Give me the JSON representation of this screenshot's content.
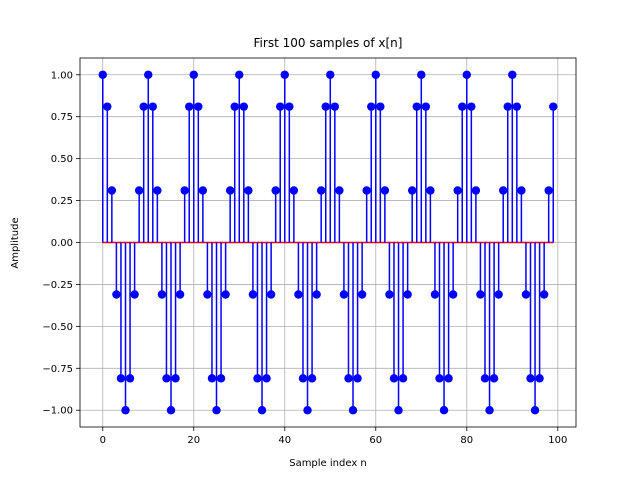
{
  "chart_data": {
    "type": "stem",
    "title": "First 100 samples of x[n]",
    "xlabel": "Sample index n",
    "ylabel": "Amplitude",
    "xlim": [
      -5,
      104
    ],
    "ylim": [
      -1.1,
      1.1
    ],
    "xticks": [
      0,
      20,
      40,
      60,
      80,
      100
    ],
    "yticks": [
      -1.0,
      -0.75,
      -0.5,
      -0.25,
      0.0,
      0.25,
      0.5,
      0.75,
      1.0
    ],
    "xtick_labels": [
      "0",
      "20",
      "40",
      "60",
      "80",
      "100"
    ],
    "ytick_labels": [
      "−1.00",
      "−0.75",
      "−0.50",
      "−0.25",
      "0.00",
      "0.25",
      "0.50",
      "0.75",
      "1.00"
    ],
    "grid": true,
    "series": [
      {
        "color": "#0000ff",
        "x": [
          0,
          1,
          2,
          3,
          4,
          5,
          6,
          7,
          8,
          9,
          10,
          11,
          12,
          13,
          14,
          15,
          16,
          17,
          18,
          19,
          20,
          21,
          22,
          23,
          24,
          25,
          26,
          27,
          28,
          29,
          30,
          31,
          32,
          33,
          34,
          35,
          36,
          37,
          38,
          39,
          40,
          41,
          42,
          43,
          44,
          45,
          46,
          47,
          48,
          49,
          50,
          51,
          52,
          53,
          54,
          55,
          56,
          57,
          58,
          59,
          60,
          61,
          62,
          63,
          64,
          65,
          66,
          67,
          68,
          69,
          70,
          71,
          72,
          73,
          74,
          75,
          76,
          77,
          78,
          79,
          80,
          81,
          82,
          83,
          84,
          85,
          86,
          87,
          88,
          89,
          90,
          91,
          92,
          93,
          94,
          95,
          96,
          97,
          98,
          99
        ],
        "y": [
          1.0,
          0.81,
          0.31,
          -0.31,
          -0.81,
          -1.0,
          -0.81,
          -0.31,
          0.31,
          0.81,
          1.0,
          0.81,
          0.31,
          -0.31,
          -0.81,
          -1.0,
          -0.81,
          -0.31,
          0.31,
          0.81,
          1.0,
          0.81,
          0.31,
          -0.31,
          -0.81,
          -1.0,
          -0.81,
          -0.31,
          0.31,
          0.81,
          1.0,
          0.81,
          0.31,
          -0.31,
          -0.81,
          -1.0,
          -0.81,
          -0.31,
          0.31,
          0.81,
          1.0,
          0.81,
          0.31,
          -0.31,
          -0.81,
          -1.0,
          -0.81,
          -0.31,
          0.31,
          0.81,
          1.0,
          0.81,
          0.31,
          -0.31,
          -0.81,
          -1.0,
          -0.81,
          -0.31,
          0.31,
          0.81,
          1.0,
          0.81,
          0.31,
          -0.31,
          -0.81,
          -1.0,
          -0.81,
          -0.31,
          0.31,
          0.81,
          1.0,
          0.81,
          0.31,
          -0.31,
          -0.81,
          -1.0,
          -0.81,
          -0.31,
          0.31,
          0.81,
          1.0,
          0.81,
          0.31,
          -0.31,
          -0.81,
          -1.0,
          -0.81,
          -0.31,
          0.31,
          0.81,
          1.0,
          0.81,
          0.31,
          -0.31,
          -0.81,
          -1.0,
          -0.81,
          -0.31,
          0.31,
          0.81
        ]
      }
    ]
  }
}
